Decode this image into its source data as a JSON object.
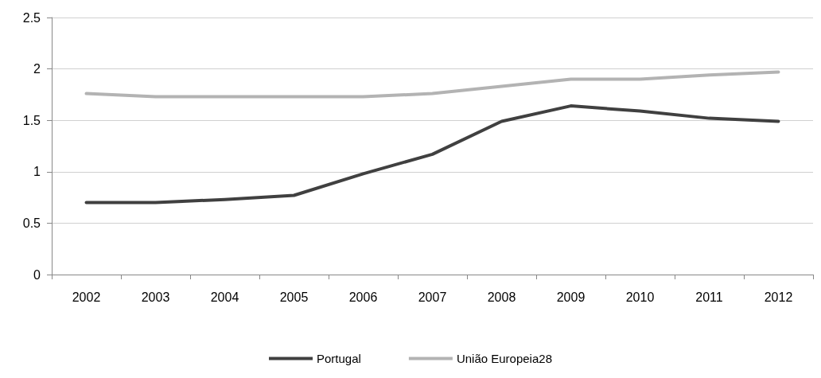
{
  "chart_data": {
    "type": "line",
    "categories": [
      "2002",
      "2003",
      "2004",
      "2005",
      "2006",
      "2007",
      "2008",
      "2009",
      "2010",
      "2011",
      "2012"
    ],
    "series": [
      {
        "name": "Portugal",
        "color": "#404040",
        "values": [
          0.7,
          0.7,
          0.73,
          0.77,
          0.98,
          1.17,
          1.49,
          1.64,
          1.59,
          1.52,
          1.49
        ]
      },
      {
        "name": "União Europeia28",
        "color": "#b3b3b3",
        "values": [
          1.76,
          1.73,
          1.73,
          1.73,
          1.73,
          1.76,
          1.83,
          1.9,
          1.9,
          1.94,
          1.97
        ]
      }
    ],
    "ylim": [
      0,
      2.5
    ],
    "yticks": [
      0,
      0.5,
      1,
      1.5,
      2,
      2.5
    ],
    "grid": "y",
    "legend": "bottom",
    "marker": "none",
    "line_style": "solid"
  }
}
